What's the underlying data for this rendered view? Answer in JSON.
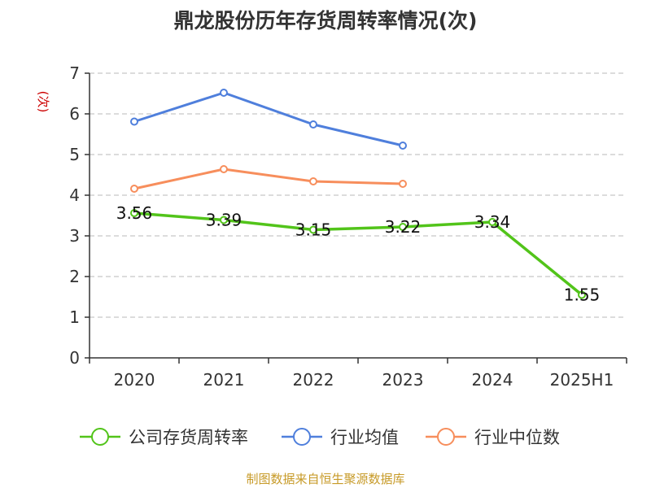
{
  "title": "鼎龙股份历年存货周转率情况(次)",
  "source": "制图数据来自恒生聚源数据库",
  "colors": {
    "company": "#52c41a",
    "industry_avg": "#4f7fdc",
    "industry_median": "#f78e5c",
    "ylabel": "#cc0000",
    "source": "#c79a27",
    "grid": "#c8c8c8",
    "axis": "#333333"
  },
  "chart_data": {
    "type": "line",
    "title": "鼎龙股份历年存货周转率情况(次)",
    "xlabel": "",
    "ylabel": "(次)",
    "categories": [
      "2020",
      "2021",
      "2022",
      "2023",
      "2024",
      "2025H1"
    ],
    "ylim": [
      0,
      7
    ],
    "yticks": [
      0,
      1,
      2,
      3,
      4,
      5,
      6,
      7
    ],
    "grid": true,
    "legend_position": "bottom",
    "series": [
      {
        "name": "公司存货周转率",
        "values": [
          3.56,
          3.39,
          3.15,
          3.22,
          3.34,
          1.55
        ],
        "labels": [
          "3.56",
          "3.39",
          "3.15",
          "3.22",
          "3.34",
          "1.55"
        ]
      },
      {
        "name": "行业均值",
        "values": [
          5.81,
          6.52,
          5.74,
          5.22,
          null,
          null
        ]
      },
      {
        "name": "行业中位数",
        "values": [
          4.16,
          4.64,
          4.34,
          4.28,
          null,
          null
        ]
      }
    ]
  }
}
